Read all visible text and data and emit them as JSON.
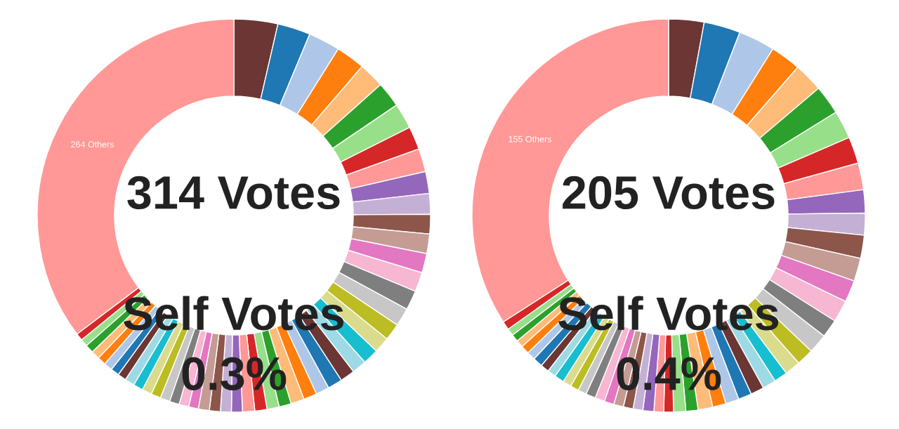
{
  "chart_data": [
    {
      "type": "donut",
      "categories": [
        null,
        null,
        null,
        null,
        null,
        null,
        null,
        null,
        null,
        null,
        null,
        null,
        null,
        null,
        null,
        null,
        null,
        null,
        null,
        null,
        null,
        null,
        null,
        null,
        null,
        null,
        null,
        null,
        null,
        null,
        null,
        null,
        null,
        null,
        null,
        null,
        null,
        null,
        null,
        null,
        null,
        null,
        null,
        null,
        null,
        null,
        null,
        null,
        null,
        null,
        "264 Others"
      ],
      "values": [
        3.6,
        2.7,
        2.6,
        2.4,
        2.1,
        2.1,
        2.1,
        1.9,
        1.9,
        1.8,
        1.7,
        1.6,
        1.6,
        1.6,
        1.6,
        1.6,
        1.5,
        1.4,
        1.3,
        1.3,
        1.2,
        1.2,
        1.2,
        1.1,
        1.1,
        1.1,
        1.0,
        1.0,
        1.0,
        1.0,
        0.9,
        0.9,
        0.9,
        0.9,
        0.8,
        0.8,
        0.8,
        0.8,
        0.8,
        0.8,
        0.8,
        0.8,
        0.7,
        0.7,
        0.7,
        0.7,
        0.7,
        0.7,
        0.6,
        0.6,
        35.3
      ],
      "colors": [
        "#6b3633",
        "#1f77b4",
        "#aec7e8",
        "#ff7f0e",
        "#ffbb78",
        "#2ca02c",
        "#98df8a",
        "#d62728",
        "#ff9896",
        "#9467bd",
        "#c5b0d5",
        "#8c564b",
        "#c49c94",
        "#e377c2",
        "#f7b6d2",
        "#7f7f7f",
        "#c7c7c7",
        "#bcbd22",
        "#dbdb8d",
        "#17becf",
        "#9edae5",
        "#6b3633",
        "#1f77b4",
        "#aec7e8",
        "#ff7f0e",
        "#ffbb78",
        "#2ca02c",
        "#98df8a",
        "#d62728",
        "#ff9896",
        "#9467bd",
        "#c5b0d5",
        "#8c564b",
        "#c49c94",
        "#e377c2",
        "#f7b6d2",
        "#7f7f7f",
        "#c7c7c7",
        "#bcbd22",
        "#dbdb8d",
        "#17becf",
        "#9edae5",
        "#6b3633",
        "#1f77b4",
        "#aec7e8",
        "#ff7f0e",
        "#ffbb78",
        "#2ca02c",
        "#98df8a",
        "#d62728",
        "#ff9896"
      ],
      "annotations": [
        "314 Votes",
        "Self Votes",
        "0.3%"
      ]
    },
    {
      "type": "donut",
      "categories": [
        null,
        null,
        null,
        null,
        null,
        null,
        null,
        null,
        null,
        null,
        null,
        null,
        null,
        null,
        null,
        null,
        null,
        null,
        null,
        null,
        null,
        null,
        null,
        null,
        null,
        null,
        null,
        null,
        null,
        null,
        null,
        null,
        null,
        null,
        null,
        null,
        null,
        null,
        null,
        null,
        null,
        null,
        null,
        null,
        null,
        null,
        null,
        null,
        null,
        null,
        "155 Others"
      ],
      "values": [
        2.9,
        3.0,
        3.0,
        2.5,
        2.4,
        2.4,
        2.3,
        2.2,
        2.2,
        1.9,
        1.8,
        1.9,
        1.9,
        1.8,
        1.8,
        1.5,
        1.6,
        1.4,
        1.3,
        1.1,
        1.1,
        1.1,
        1.1,
        1.1,
        1.1,
        1.2,
        1.0,
        1.0,
        0.8,
        0.8,
        0.9,
        0.8,
        0.8,
        0.8,
        0.8,
        0.8,
        0.8,
        0.7,
        0.7,
        0.7,
        0.8,
        0.7,
        0.7,
        0.8,
        0.7,
        0.7,
        0.6,
        0.6,
        0.6,
        0.7,
        34.1
      ],
      "colors": [
        "#6b3633",
        "#1f77b4",
        "#aec7e8",
        "#ff7f0e",
        "#ffbb78",
        "#2ca02c",
        "#98df8a",
        "#d62728",
        "#ff9896",
        "#9467bd",
        "#c5b0d5",
        "#8c564b",
        "#c49c94",
        "#e377c2",
        "#f7b6d2",
        "#7f7f7f",
        "#c7c7c7",
        "#bcbd22",
        "#dbdb8d",
        "#17becf",
        "#9edae5",
        "#6b3633",
        "#1f77b4",
        "#aec7e8",
        "#ff7f0e",
        "#ffbb78",
        "#2ca02c",
        "#98df8a",
        "#d62728",
        "#ff9896",
        "#9467bd",
        "#c5b0d5",
        "#8c564b",
        "#c49c94",
        "#e377c2",
        "#f7b6d2",
        "#7f7f7f",
        "#c7c7c7",
        "#bcbd22",
        "#dbdb8d",
        "#17becf",
        "#9edae5",
        "#6b3633",
        "#1f77b4",
        "#aec7e8",
        "#ff7f0e",
        "#ffbb78",
        "#2ca02c",
        "#98df8a",
        "#d62728",
        "#ff9896"
      ],
      "annotations": [
        "205 Votes",
        "Self Votes",
        "0.4%"
      ]
    }
  ]
}
